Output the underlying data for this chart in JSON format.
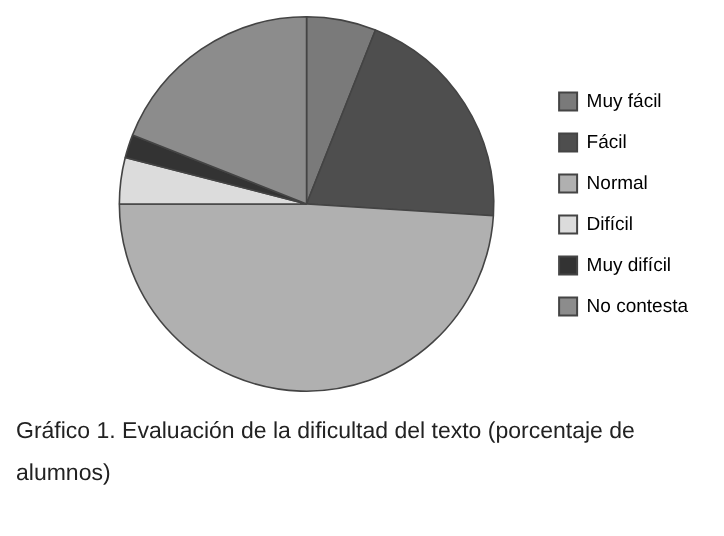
{
  "chart_data": {
    "type": "pie",
    "title": "Gráfico 1. Evaluación de la dificultad del texto (porcentaje de alumnos)",
    "categories": [
      "Muy fácil",
      "Fácil",
      "Normal",
      "Difícil",
      "Muy difícil",
      "No contesta"
    ],
    "values": [
      6,
      20,
      49,
      4,
      2,
      19
    ],
    "colors": [
      "#7a7a7a",
      "#4e4e4e",
      "#b0b0b0",
      "#dcdcdc",
      "#333333",
      "#8c8c8c"
    ],
    "legend": "right"
  }
}
